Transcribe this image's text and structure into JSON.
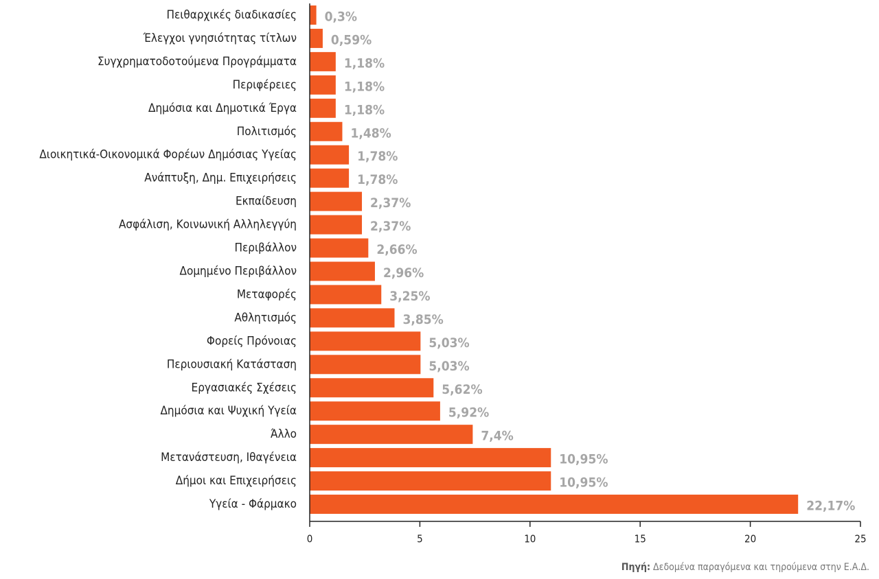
{
  "chart_data": {
    "type": "barh",
    "categories": [
      "Πειθαρχικές διαδικασίες",
      "Έλεγχοι γνησιότητας τίτλων",
      "Συγχρηματοδοτούμενα Προγράμματα",
      "Περιφέρειες",
      "Δημόσια και Δημοτικά Έργα",
      "Πολιτισμός",
      "Διοικητικά-Οικονομικά Φορέων Δημόσιας Υγείας",
      "Ανάπτυξη, Δημ. Επιχειρήσεις",
      "Εκπαίδευση",
      "Ασφάλιση, Κοινωνική Αλληλεγγύη",
      "Περιβάλλον",
      "Δομημένο Περιβάλλον",
      "Μεταφορές",
      "Αθλητισμός",
      "Φορείς Πρόνοιας",
      "Περιουσιακή Κατάσταση",
      "Εργασιακές Σχέσεις",
      "Δημόσια και Ψυχική Υγεία",
      "Άλλο",
      "Μετανάστευση, Ιθαγένεια",
      "Δήμοι και Επιχειρήσεις",
      "Υγεία - Φάρμακο"
    ],
    "values": [
      0.3,
      0.59,
      1.18,
      1.18,
      1.18,
      1.48,
      1.78,
      1.78,
      2.37,
      2.37,
      2.66,
      2.96,
      3.25,
      3.85,
      5.03,
      5.03,
      5.62,
      5.92,
      7.4,
      10.95,
      10.95,
      22.17
    ],
    "value_labels": [
      "0,3%",
      "0,59%",
      "1,18%",
      "1,18%",
      "1,18%",
      "1,48%",
      "1,78%",
      "1,78%",
      "2,37%",
      "2,37%",
      "2,66%",
      "2,96%",
      "3,25%",
      "3,85%",
      "5,03%",
      "5,03%",
      "5,62%",
      "5,92%",
      "7,4%",
      "10,95%",
      "10,95%",
      "22,17%"
    ],
    "color": "#f15a22",
    "xlim": [
      0,
      25
    ],
    "xticks": [
      0,
      5,
      10,
      15,
      20,
      25
    ],
    "grid": false,
    "source_label": "Πηγή:",
    "source_text": "Δεδομένα παραγόμενα και τηρούμενα στην Ε.Α.Δ."
  }
}
